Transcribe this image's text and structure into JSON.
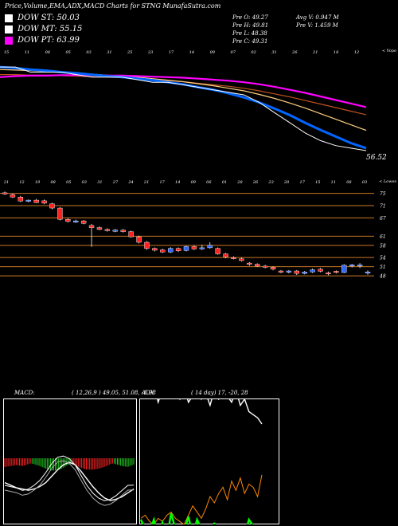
{
  "header": {
    "title": "Price,Volume,EMA,ADX,MACD Charts for STNG MunafaSutra.com"
  },
  "legend": [
    {
      "label": "DOW ST: 50.03",
      "color": "#ffffff"
    },
    {
      "label": "DOW MT: 55.15",
      "color": "#ffffff"
    },
    {
      "label": "DOW PT: 63.99",
      "color": "#ff00ff"
    }
  ],
  "stats": {
    "prev_open": "Pre   O: 49.27",
    "prev_high": "Pre   H: 49.81",
    "prev_low": "Pre   L: 48.38",
    "prev_close": "Pre   C: 49.31",
    "avg_volume": "Avg V: 0.947 M",
    "prev_volume": "Pre   V: 1.459 M"
  },
  "ema_panel": {
    "top_right_label": "< Vopo",
    "price_label": "56.52",
    "top_ticks": [
      "15",
      "11",
      "08",
      "05",
      "03",
      "31",
      "25",
      "23",
      "17",
      "14",
      "09",
      "07",
      "02",
      "31",
      "26",
      "21",
      "18",
      "12"
    ],
    "colors": {
      "price": "#ffffff",
      "ema_fast": "#0066ff",
      "ema_mid": "#ffd080",
      "ema_slow": "#c05020",
      "ema_pt": "#ff00ff"
    }
  },
  "candle_panel": {
    "top_right_label": "< Lowes",
    "top_ticks": [
      "21",
      "12",
      "19",
      "08",
      "05",
      "03",
      "31",
      "27",
      "24",
      "21",
      "17",
      "14",
      "09",
      "06",
      "01",
      "28",
      "26",
      "23",
      "20",
      "17",
      "15",
      "11",
      "08",
      "03"
    ],
    "levels": [
      75,
      71,
      67,
      61,
      58,
      54,
      51,
      48
    ],
    "colors": {
      "up": "#3366ff",
      "down": "#ff2222",
      "level": "#cc7722"
    }
  },
  "macd_panel": {
    "label": "MACD:",
    "values": "( 12,26,9 ) 49.05, 51.08, -1.98"
  },
  "adx_panel": {
    "label": "ADX",
    "values": "( 14  day) 17, -20, 28"
  },
  "chart_data": [
    {
      "type": "line",
      "name": "EMA",
      "series": [
        {
          "name": "price",
          "values": [
            73,
            73,
            72,
            72,
            72,
            71.5,
            71,
            71,
            71,
            70.5,
            70,
            70,
            69.5,
            69,
            68.5,
            68,
            67.5,
            66,
            64,
            62,
            60,
            58.5,
            57.5,
            57,
            56.52
          ]
        },
        {
          "name": "ema_fast",
          "values": [
            73,
            72.8,
            72.5,
            72.3,
            72,
            71.8,
            71.5,
            71.2,
            71,
            70.7,
            70.4,
            70,
            69.6,
            69,
            68.5,
            67.8,
            67,
            66,
            64.8,
            63.5,
            62,
            60.6,
            59.3,
            58,
            57
          ]
        },
        {
          "name": "ema_mid",
          "values": [
            72.5,
            72.4,
            72.3,
            72.1,
            72,
            71.8,
            71.6,
            71.4,
            71.2,
            71,
            70.7,
            70.4,
            70.1,
            69.7,
            69.3,
            68.8,
            68.3,
            67.6,
            66.8,
            65.9,
            64.9,
            63.8,
            62.7,
            61.6,
            60.5
          ]
        },
        {
          "name": "ema_slow",
          "values": [
            71.5,
            71.5,
            71.4,
            71.4,
            71.3,
            71.2,
            71.1,
            71,
            70.9,
            70.7,
            70.5,
            70.3,
            70.1,
            69.8,
            69.5,
            69.2,
            68.8,
            68.3,
            67.7,
            67.1,
            66.4,
            65.7,
            65,
            64.3,
            63.6
          ]
        },
        {
          "name": "dow_pt",
          "values": [
            71,
            71.2,
            71.3,
            71.3,
            71.4,
            71.4,
            71.4,
            71.3,
            71.3,
            71.2,
            71.1,
            71,
            70.9,
            70.7,
            70.5,
            70.3,
            70,
            69.6,
            69.1,
            68.5,
            67.9,
            67.2,
            66.5,
            65.8,
            65.1
          ]
        }
      ]
    },
    {
      "type": "candlestick",
      "name": "Price",
      "candles": [
        {
          "o": 75.2,
          "c": 74.8,
          "h": 75.6,
          "l": 74.5
        },
        {
          "o": 74.6,
          "c": 73.8,
          "h": 75.0,
          "l": 73.5
        },
        {
          "o": 73.8,
          "c": 72.5,
          "h": 74.2,
          "l": 72.2
        },
        {
          "o": 72.4,
          "c": 72.8,
          "h": 73.0,
          "l": 72.1
        },
        {
          "o": 72.8,
          "c": 72.0,
          "h": 73.2,
          "l": 71.8
        },
        {
          "o": 72.6,
          "c": 71.8,
          "h": 73.0,
          "l": 71.5
        },
        {
          "o": 71.6,
          "c": 70.2,
          "h": 71.9,
          "l": 69.8
        },
        {
          "o": 70.2,
          "c": 66.5,
          "h": 70.5,
          "l": 66.2
        },
        {
          "o": 66.5,
          "c": 65.8,
          "h": 66.9,
          "l": 65.5
        },
        {
          "o": 65.6,
          "c": 66.0,
          "h": 66.4,
          "l": 65.3
        },
        {
          "o": 66.0,
          "c": 65.2,
          "h": 66.3,
          "l": 64.9
        },
        {
          "o": 64.5,
          "c": 63.8,
          "h": 65.0,
          "l": 57.5
        },
        {
          "o": 63.8,
          "c": 63.2,
          "h": 64.2,
          "l": 62.9
        },
        {
          "o": 63.2,
          "c": 62.8,
          "h": 63.6,
          "l": 62.5
        },
        {
          "o": 62.6,
          "c": 63.0,
          "h": 63.4,
          "l": 62.3
        },
        {
          "o": 63.0,
          "c": 62.5,
          "h": 63.3,
          "l": 62.2
        },
        {
          "o": 62.5,
          "c": 60.8,
          "h": 62.8,
          "l": 60.5
        },
        {
          "o": 60.8,
          "c": 59.0,
          "h": 61.2,
          "l": 58.6
        },
        {
          "o": 59.0,
          "c": 57.0,
          "h": 59.4,
          "l": 56.5
        },
        {
          "o": 57.0,
          "c": 56.4,
          "h": 57.3,
          "l": 56.0
        },
        {
          "o": 56.5,
          "c": 55.8,
          "h": 56.9,
          "l": 55.5
        },
        {
          "o": 55.8,
          "c": 57.0,
          "h": 57.4,
          "l": 55.5
        },
        {
          "o": 57.0,
          "c": 56.2,
          "h": 57.3,
          "l": 55.8
        },
        {
          "o": 56.3,
          "c": 57.6,
          "h": 57.9,
          "l": 56.0
        },
        {
          "o": 57.6,
          "c": 56.8,
          "h": 58.0,
          "l": 56.5
        },
        {
          "o": 56.8,
          "c": 57.2,
          "h": 58.2,
          "l": 56.5
        },
        {
          "o": 57.2,
          "c": 58.0,
          "h": 59.0,
          "l": 56.9
        },
        {
          "o": 57.0,
          "c": 55.2,
          "h": 57.3,
          "l": 54.9
        },
        {
          "o": 55.2,
          "c": 54.2,
          "h": 55.5,
          "l": 53.8
        },
        {
          "o": 54.0,
          "c": 53.8,
          "h": 54.4,
          "l": 53.4
        },
        {
          "o": 53.6,
          "c": 53.0,
          "h": 54.0,
          "l": 52.7
        },
        {
          "o": 52.2,
          "c": 51.8,
          "h": 52.5,
          "l": 51.3
        },
        {
          "o": 51.8,
          "c": 51.2,
          "h": 52.1,
          "l": 50.9
        },
        {
          "o": 51.2,
          "c": 50.8,
          "h": 51.6,
          "l": 50.5
        },
        {
          "o": 50.8,
          "c": 50.2,
          "h": 51.1,
          "l": 49.8
        },
        {
          "o": 49.6,
          "c": 49.2,
          "h": 49.9,
          "l": 48.9
        },
        {
          "o": 49.2,
          "c": 49.6,
          "h": 49.9,
          "l": 48.8
        },
        {
          "o": 49.6,
          "c": 48.8,
          "h": 49.9,
          "l": 48.3
        },
        {
          "o": 48.8,
          "c": 49.3,
          "h": 49.6,
          "l": 48.5
        },
        {
          "o": 49.3,
          "c": 50.0,
          "h": 50.4,
          "l": 49.0
        },
        {
          "o": 50.2,
          "c": 49.5,
          "h": 50.6,
          "l": 49.2
        },
        {
          "o": 49.0,
          "c": 48.9,
          "h": 49.4,
          "l": 48.2
        },
        {
          "o": 49.5,
          "c": 49.1,
          "h": 49.8,
          "l": 48.8
        },
        {
          "o": 49.1,
          "c": 51.5,
          "h": 51.8,
          "l": 48.9
        },
        {
          "o": 51.2,
          "c": 51.6,
          "h": 51.9,
          "l": 50.8
        },
        {
          "o": 51.2,
          "c": 51.6,
          "h": 52.2,
          "l": 50.6
        },
        {
          "o": 49.27,
          "c": 49.31,
          "h": 49.81,
          "l": 48.38
        }
      ]
    },
    {
      "type": "line",
      "name": "MACD",
      "series": [
        {
          "name": "macd",
          "values": [
            -2.0,
            -2.1,
            -2.2,
            -2.4,
            -2.3,
            -2.0,
            -1.6,
            -1.0,
            -0.3,
            0.2,
            0.3,
            0.1,
            -0.4,
            -1.2,
            -2.0,
            -2.6,
            -3.0,
            -3.2,
            -3.1,
            -2.8,
            -2.4,
            -2.0,
            -1.98
          ]
        },
        {
          "name": "signal",
          "values": [
            -1.6,
            -1.8,
            -2.0,
            -2.1,
            -2.2,
            -2.1,
            -1.9,
            -1.6,
            -1.1,
            -0.6,
            -0.2,
            0.0,
            -0.2,
            -0.7,
            -1.3,
            -1.9,
            -2.4,
            -2.8,
            -3.0,
            -2.9,
            -2.7,
            -2.4,
            -2.1
          ]
        },
        {
          "name": "histogram",
          "values": [
            -0.4,
            -0.3,
            -0.2,
            -0.3,
            -0.1,
            0.1,
            0.3,
            0.6,
            0.8,
            0.8,
            0.5,
            0.1,
            -0.2,
            -0.5,
            -0.7,
            -0.7,
            -0.6,
            -0.4,
            -0.1,
            0.1,
            0.3,
            0.4,
            0.12
          ]
        }
      ]
    },
    {
      "type": "line",
      "name": "ADX",
      "series": [
        {
          "name": "+DI",
          "values": [
            20,
            17,
            16,
            20,
            15,
            19,
            14,
            22,
            17,
            18,
            16,
            21,
            15,
            20,
            17,
            16,
            14,
            19,
            13,
            15,
            18,
            16,
            14,
            17,
            15,
            20,
            18,
            16,
            17
          ]
        },
        {
          "name": "-DI",
          "values": [
            28,
            30,
            29,
            33,
            27,
            31,
            29,
            34,
            30,
            28,
            32,
            27,
            29,
            33,
            28,
            30,
            26,
            31,
            28,
            30,
            29,
            27,
            31,
            26,
            28,
            24,
            23,
            22,
            20
          ]
        },
        {
          "name": "ADX",
          "values": [
            14,
            15,
            13,
            12,
            14,
            13,
            15,
            16,
            14,
            13,
            12,
            15,
            18,
            16,
            14,
            17,
            21,
            19,
            22,
            24,
            20,
            26,
            23,
            27,
            22,
            25,
            24,
            21,
            28
          ]
        }
      ]
    }
  ]
}
